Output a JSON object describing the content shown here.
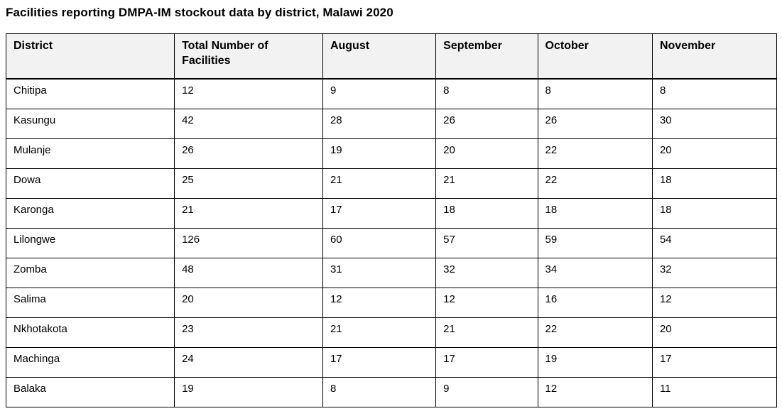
{
  "page": {
    "title": "Facilities reporting DMPA-IM stockout data by district, Malawi 2020"
  },
  "table": {
    "columns": [
      "District",
      "Total Number of Facilities",
      "August",
      "September",
      "October",
      "November"
    ],
    "rows": [
      {
        "district": "Chitipa",
        "values": [
          "12",
          "9",
          "8",
          "8",
          "8"
        ]
      },
      {
        "district": "Kasungu",
        "values": [
          "42",
          "28",
          "26",
          "26",
          "30"
        ]
      },
      {
        "district": "Mulanje",
        "values": [
          "26",
          "19",
          "20",
          "22",
          "20"
        ]
      },
      {
        "district": "Dowa",
        "values": [
          "25",
          "21",
          "21",
          "22",
          "18"
        ]
      },
      {
        "district": "Karonga",
        "values": [
          "21",
          "17",
          "18",
          "18",
          "18"
        ]
      },
      {
        "district": "Lilongwe",
        "values": [
          "126",
          "60",
          "57",
          "59",
          "54"
        ]
      },
      {
        "district": "Zomba",
        "values": [
          "48",
          "31",
          "32",
          "34",
          "32"
        ]
      },
      {
        "district": "Salima",
        "values": [
          "20",
          "12",
          "12",
          "16",
          "12"
        ]
      },
      {
        "district": "Nkhotakota",
        "values": [
          "23",
          "21",
          "21",
          "22",
          "20"
        ]
      },
      {
        "district": "Machinga",
        "values": [
          "24",
          "17",
          "17",
          "19",
          "17"
        ]
      },
      {
        "district": "Balaka",
        "values": [
          "19",
          "8",
          "9",
          "12",
          "11"
        ]
      }
    ],
    "colors": {
      "header_bg": "#f2f2f2",
      "border": "#000000",
      "text": "#000000",
      "page_bg": "#ffffff"
    }
  }
}
